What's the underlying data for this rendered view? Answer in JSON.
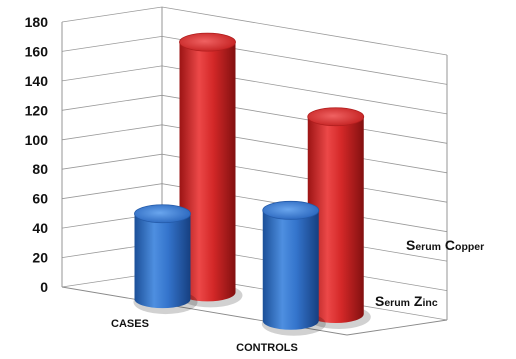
{
  "chart_data": {
    "type": "bar",
    "style": "3d-cylinder",
    "categories": [
      "CASES",
      "CONTROLS"
    ],
    "series": [
      {
        "name": "Serum Zinc",
        "values": [
          58,
          75
        ],
        "color": "#2f6fc4"
      },
      {
        "name": "Serum Copper",
        "values": [
          170,
          134
        ],
        "color": "#d42a2a"
      }
    ],
    "yticks": [
      "0",
      "20",
      "40",
      "60",
      "80",
      "100",
      "120",
      "140",
      "160",
      "180"
    ],
    "ylim": [
      0,
      180
    ],
    "grid": true,
    "legend": "series labels along the depth axis on the right"
  }
}
